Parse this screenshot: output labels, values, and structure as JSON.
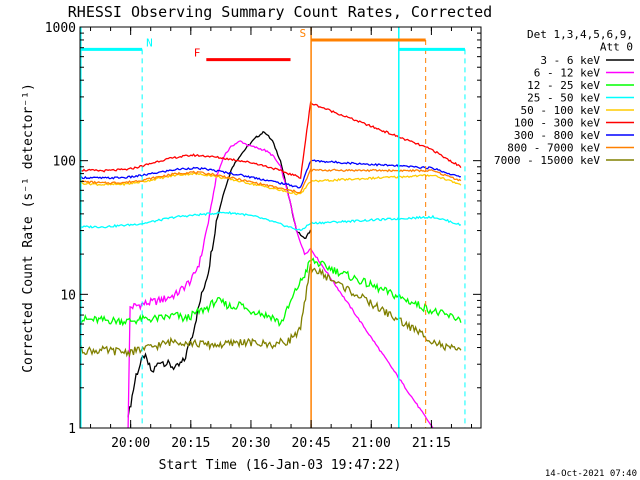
{
  "chart_data": {
    "type": "line",
    "title": "RHESSI Observing Summary Count Rates, Corrected",
    "xlabel": "Start Time (16-Jan-03 19:47:22)",
    "ylabel": "Corrected Count Rate (s⁻¹ detector⁻¹)",
    "yscale": "log",
    "ylim": [
      1,
      1000
    ],
    "xlim_minutes": [
      0,
      100
    ],
    "x_ticks": [
      {
        "label": "20:00",
        "minute": 12.63
      },
      {
        "label": "20:15",
        "minute": 27.63
      },
      {
        "label": "20:30",
        "minute": 42.63
      },
      {
        "label": "20:45",
        "minute": 57.63
      },
      {
        "label": "21:00",
        "minute": 72.63
      },
      {
        "label": "21:15",
        "minute": 87.63
      }
    ],
    "y_ticks": [
      {
        "label": "1",
        "value": 1
      },
      {
        "label": "10",
        "value": 10
      },
      {
        "label": "100",
        "value": 100
      },
      {
        "label": "1000",
        "value": 1000
      }
    ],
    "legend_header": [
      "Det 1,3,4,5,6,9,",
      "Att 0"
    ],
    "series": [
      {
        "name": "3 - 6 keV",
        "color": "#000000",
        "points": [
          [
            0,
            null
          ],
          [
            10,
            null
          ],
          [
            12,
            1.2
          ],
          [
            14,
            2.5
          ],
          [
            16,
            3.5
          ],
          [
            18,
            2.6
          ],
          [
            20,
            3.2
          ],
          [
            22,
            3.0
          ],
          [
            24,
            2.8
          ],
          [
            26,
            3.2
          ],
          [
            28,
            5
          ],
          [
            30,
            9
          ],
          [
            32,
            15
          ],
          [
            34,
            35
          ],
          [
            36,
            60
          ],
          [
            38,
            90
          ],
          [
            40,
            110
          ],
          [
            42,
            130
          ],
          [
            44,
            150
          ],
          [
            46,
            165
          ],
          [
            48,
            140
          ],
          [
            50,
            100
          ],
          [
            52,
            55
          ],
          [
            54,
            30
          ],
          [
            56,
            26
          ],
          [
            57.5,
            30
          ]
        ]
      },
      {
        "name": "6 - 12 keV",
        "color": "#ff00ff",
        "points": [
          [
            0,
            null
          ],
          [
            12,
            1.0
          ],
          [
            12.5,
            8
          ],
          [
            16,
            8.5
          ],
          [
            20,
            9
          ],
          [
            24,
            10
          ],
          [
            28,
            13
          ],
          [
            30,
            18
          ],
          [
            32,
            35
          ],
          [
            34,
            75
          ],
          [
            36,
            110
          ],
          [
            38,
            130
          ],
          [
            40,
            140
          ],
          [
            42,
            130
          ],
          [
            44,
            125
          ],
          [
            46,
            120
          ],
          [
            48,
            110
          ],
          [
            50,
            90
          ],
          [
            52,
            55
          ],
          [
            54,
            30
          ],
          [
            56,
            20
          ],
          [
            57.5,
            22
          ],
          [
            88,
            1.0
          ],
          [
            89,
            null
          ]
        ]
      },
      {
        "name": "12 - 25 keV",
        "color": "#00ff00",
        "points": [
          [
            0,
            6.5
          ],
          [
            6,
            6.4
          ],
          [
            12,
            6.3
          ],
          [
            16,
            6.5
          ],
          [
            20,
            6.6
          ],
          [
            24,
            7.0
          ],
          [
            26,
            6.5
          ],
          [
            30,
            7.5
          ],
          [
            32,
            8.0
          ],
          [
            34,
            9.0
          ],
          [
            36,
            8.5
          ],
          [
            38,
            8.0
          ],
          [
            40,
            8.5
          ],
          [
            42,
            7.5
          ],
          [
            44,
            7.5
          ],
          [
            46,
            7.0
          ],
          [
            48,
            6.8
          ],
          [
            50,
            6.0
          ],
          [
            52,
            8.0
          ],
          [
            54,
            11
          ],
          [
            56,
            14
          ],
          [
            57.5,
            18
          ],
          [
            88,
            7.5
          ],
          [
            91,
            7.0
          ],
          [
            95,
            6.5
          ]
        ]
      },
      {
        "name": "25 - 50 keV",
        "color": "#00ffff",
        "points": [
          [
            0,
            32
          ],
          [
            6,
            32
          ],
          [
            12,
            33
          ],
          [
            16,
            34
          ],
          [
            20,
            36
          ],
          [
            24,
            38
          ],
          [
            28,
            39
          ],
          [
            32,
            40
          ],
          [
            36,
            41
          ],
          [
            40,
            40
          ],
          [
            44,
            38
          ],
          [
            48,
            35
          ],
          [
            52,
            32
          ],
          [
            55,
            30
          ],
          [
            57.5,
            34
          ],
          [
            88,
            38
          ],
          [
            91,
            36
          ],
          [
            95,
            33
          ]
        ]
      },
      {
        "name": "50 - 100 keV",
        "color": "#ffcc00",
        "points": [
          [
            0,
            68
          ],
          [
            6,
            66
          ],
          [
            12,
            67
          ],
          [
            16,
            70
          ],
          [
            20,
            74
          ],
          [
            24,
            78
          ],
          [
            28,
            80
          ],
          [
            32,
            78
          ],
          [
            36,
            74
          ],
          [
            40,
            70
          ],
          [
            44,
            66
          ],
          [
            48,
            62
          ],
          [
            52,
            58
          ],
          [
            55,
            56
          ],
          [
            57.5,
            70
          ],
          [
            88,
            78
          ],
          [
            91,
            73
          ],
          [
            95,
            66
          ]
        ]
      },
      {
        "name": "100 - 300 keV",
        "color": "#ff0000",
        "points": [
          [
            0,
            85
          ],
          [
            6,
            84
          ],
          [
            12,
            86
          ],
          [
            16,
            92
          ],
          [
            20,
            100
          ],
          [
            24,
            106
          ],
          [
            28,
            110
          ],
          [
            32,
            108
          ],
          [
            36,
            104
          ],
          [
            40,
            100
          ],
          [
            44,
            95
          ],
          [
            48,
            88
          ],
          [
            52,
            80
          ],
          [
            55,
            75
          ],
          [
            57.5,
            270
          ],
          [
            88,
            120
          ],
          [
            91,
            105
          ],
          [
            95,
            90
          ]
        ]
      },
      {
        "name": "300 - 800 keV",
        "color": "#0000ff",
        "points": [
          [
            0,
            75
          ],
          [
            6,
            74
          ],
          [
            12,
            75
          ],
          [
            16,
            78
          ],
          [
            20,
            82
          ],
          [
            24,
            86
          ],
          [
            28,
            88
          ],
          [
            32,
            86
          ],
          [
            36,
            82
          ],
          [
            40,
            78
          ],
          [
            44,
            74
          ],
          [
            48,
            70
          ],
          [
            52,
            66
          ],
          [
            55,
            63
          ],
          [
            57.5,
            100
          ],
          [
            88,
            88
          ],
          [
            91,
            82
          ],
          [
            95,
            75
          ]
        ]
      },
      {
        "name": "800 - 7000 keV",
        "color": "#ff8000",
        "points": [
          [
            0,
            70
          ],
          [
            6,
            68
          ],
          [
            12,
            69
          ],
          [
            16,
            72
          ],
          [
            20,
            76
          ],
          [
            24,
            80
          ],
          [
            28,
            82
          ],
          [
            32,
            80
          ],
          [
            36,
            76
          ],
          [
            40,
            72
          ],
          [
            44,
            68
          ],
          [
            48,
            64
          ],
          [
            52,
            60
          ],
          [
            55,
            58
          ],
          [
            57.5,
            85
          ],
          [
            88,
            84
          ],
          [
            91,
            78
          ],
          [
            95,
            71
          ]
        ]
      },
      {
        "name": "7000 - 15000 keV",
        "color": "#808000",
        "points": [
          [
            0,
            3.8
          ],
          [
            6,
            3.8
          ],
          [
            12,
            3.7
          ],
          [
            16,
            3.9
          ],
          [
            20,
            4.2
          ],
          [
            24,
            4.5
          ],
          [
            28,
            4.3
          ],
          [
            32,
            4.2
          ],
          [
            36,
            4.2
          ],
          [
            40,
            4.4
          ],
          [
            44,
            4.3
          ],
          [
            48,
            4.2
          ],
          [
            52,
            4.5
          ],
          [
            55,
            5.5
          ],
          [
            57.5,
            16
          ],
          [
            88,
            4.5
          ],
          [
            91,
            4.0
          ],
          [
            95,
            3.8
          ]
        ]
      }
    ],
    "annotations": [
      {
        "label": "N",
        "color": "#00ffff",
        "y_value": 680,
        "from_minute": 0,
        "to_minute": 15.5,
        "dashed_end_minute": 15.5
      },
      {
        "label": "F",
        "color": "#ff0000",
        "y_value": 570,
        "from_minute": 31.5,
        "to_minute": 52.5
      },
      {
        "label": "S",
        "color": "#ff8000",
        "y_value": 800,
        "from_minute": 57.63,
        "to_minute": 86.2,
        "dashed_end_minute": 86.2
      },
      {
        "label": "",
        "color": "#00ffff",
        "y_value": 680,
        "from_minute": 79.5,
        "to_minute": 96,
        "dashed_end_minute": 96
      }
    ],
    "vertical_markers": [
      {
        "minute": 0.2,
        "color": "#00ffff",
        "style": "solid"
      },
      {
        "minute": 57.63,
        "color": "#ff8000",
        "style": "solid"
      },
      {
        "minute": 79.5,
        "color": "#00ffff",
        "style": "solid"
      }
    ],
    "footer_timestamp": "14-Oct-2021 07:40"
  }
}
